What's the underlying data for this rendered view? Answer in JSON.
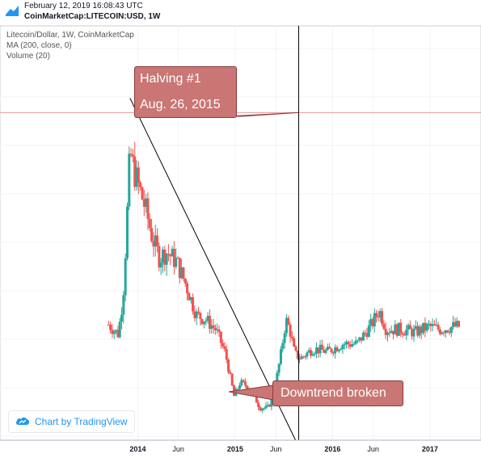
{
  "header": {
    "timestamp": "February 12, 2019 16:08:43 UTC",
    "symbol": "CoinMarketCap:LITECOIN:USD, 1W"
  },
  "legend": {
    "title": "Litecoin/Dollar, 1W, CoinMarketCap",
    "indicator1": "MA (200, close, 0)",
    "indicator2": "Volume (20)"
  },
  "annotations": {
    "halving_line1": "Halving #1",
    "halving_line2": "Aug. 26, 2015",
    "downtrend": "Downtrend broken"
  },
  "branding": {
    "text": "Chart by TradingView",
    "icon": "tradingview-cloud-icon"
  },
  "colors": {
    "up": "#26a69a",
    "down": "#ef5350",
    "callout": "#c97675",
    "brand": "#2196f3"
  },
  "chart_data": {
    "type": "candlestick",
    "interval": "1W",
    "x_ticks": [
      "2014",
      "Jun",
      "2015",
      "Jun",
      "2016",
      "Jun",
      "2017"
    ],
    "grid": true,
    "ylim": [
      0,
      43
    ],
    "y_scale": "linear",
    "price_line": 34,
    "events": [
      {
        "label": "Halving #1",
        "date": "2015-08-26"
      }
    ],
    "trendline": [
      [
        2013.92,
        35.5
      ],
      [
        2015.62,
        0
      ]
    ],
    "waypoints": [
      [
        2013.7,
        12
      ],
      [
        2013.8,
        11
      ],
      [
        2013.85,
        15
      ],
      [
        2013.88,
        21
      ],
      [
        2013.92,
        30
      ],
      [
        2013.96,
        28
      ],
      [
        2014.02,
        26
      ],
      [
        2014.08,
        24
      ],
      [
        2014.15,
        21
      ],
      [
        2014.22,
        19
      ],
      [
        2014.3,
        19.5
      ],
      [
        2014.4,
        18.5
      ],
      [
        2014.5,
        16
      ],
      [
        2014.6,
        13
      ],
      [
        2014.7,
        12.5
      ],
      [
        2014.8,
        11.5
      ],
      [
        2014.9,
        9
      ],
      [
        2014.99,
        4.5
      ],
      [
        2015.05,
        6
      ],
      [
        2015.15,
        5.5
      ],
      [
        2015.25,
        3.5
      ],
      [
        2015.33,
        3.2
      ],
      [
        2015.4,
        5
      ],
      [
        2015.47,
        9
      ],
      [
        2015.52,
        12.5
      ],
      [
        2015.56,
        11.5
      ],
      [
        2015.61,
        9
      ],
      [
        2015.67,
        8.5
      ],
      [
        2015.8,
        9.5
      ],
      [
        2015.95,
        9.2
      ],
      [
        2016.1,
        10
      ],
      [
        2016.25,
        10
      ],
      [
        2016.4,
        12
      ],
      [
        2016.48,
        13.5
      ],
      [
        2016.55,
        11.5
      ],
      [
        2016.7,
        11.5
      ],
      [
        2016.85,
        11.2
      ],
      [
        2016.99,
        11.8
      ],
      [
        2017.1,
        11.5
      ],
      [
        2017.25,
        11.8
      ]
    ]
  }
}
